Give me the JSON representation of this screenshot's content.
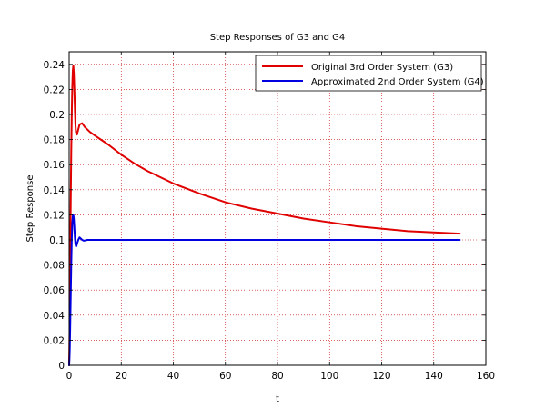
{
  "chart_data": {
    "type": "line",
    "title": "Step Responses of G3 and G4",
    "xlabel": "t",
    "ylabel": "Step Response",
    "xlim": [
      0,
      160
    ],
    "ylim": [
      0,
      0.25
    ],
    "xticks": [
      "0",
      "20",
      "40",
      "60",
      "80",
      "100",
      "120",
      "140",
      "160"
    ],
    "yticks": [
      "0",
      "0.02",
      "0.04",
      "0.06",
      "0.08",
      "0.1",
      "0.12",
      "0.14",
      "0.16",
      "0.18",
      "0.2",
      "0.22",
      "0.24"
    ],
    "grid": true,
    "legend_position": "top-right",
    "series": [
      {
        "name": "Original 3rd Order System (G3)",
        "color": "#e00000",
        "x": [
          0,
          0.2,
          0.4,
          0.6,
          0.8,
          1.0,
          1.2,
          1.4,
          1.6,
          1.8,
          2.0,
          2.2,
          2.4,
          2.6,
          3.0,
          3.5,
          4.0,
          5.0,
          6.0,
          7.0,
          8.0,
          10,
          15,
          20,
          25,
          30,
          40,
          50,
          60,
          70,
          80,
          90,
          100,
          110,
          120,
          130,
          140,
          150
        ],
        "y": [
          0,
          0.03,
          0.08,
          0.13,
          0.17,
          0.2,
          0.222,
          0.235,
          0.239,
          0.233,
          0.22,
          0.205,
          0.193,
          0.186,
          0.184,
          0.188,
          0.192,
          0.193,
          0.19,
          0.188,
          0.186,
          0.183,
          0.176,
          0.168,
          0.161,
          0.155,
          0.145,
          0.137,
          0.13,
          0.125,
          0.121,
          0.117,
          0.114,
          0.111,
          0.109,
          0.107,
          0.106,
          0.105
        ]
      },
      {
        "name": "Approximated 2nd Order System (G4)",
        "color": "#0000e0",
        "x": [
          0,
          0.2,
          0.4,
          0.6,
          0.8,
          1.0,
          1.2,
          1.4,
          1.6,
          1.8,
          2.0,
          2.2,
          2.4,
          2.6,
          2.8,
          3.0,
          3.5,
          4.0,
          4.5,
          5.0,
          5.5,
          6.0,
          7.0,
          8.0,
          10,
          20,
          40,
          60,
          80,
          100,
          120,
          150
        ],
        "y": [
          0,
          0.01,
          0.03,
          0.055,
          0.08,
          0.1,
          0.113,
          0.119,
          0.12,
          0.117,
          0.11,
          0.102,
          0.097,
          0.095,
          0.095,
          0.097,
          0.1,
          0.102,
          0.101,
          0.1,
          0.0995,
          0.0995,
          0.1,
          0.1,
          0.1,
          0.1,
          0.1,
          0.1,
          0.1,
          0.1,
          0.1,
          0.1
        ]
      }
    ]
  }
}
